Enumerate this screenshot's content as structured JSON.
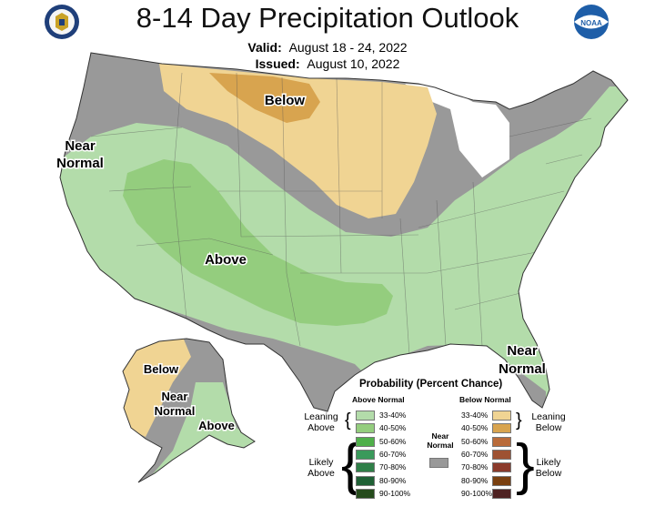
{
  "title": "8-14 Day Precipitation Outlook",
  "valid": {
    "label": "Valid:",
    "value": "August 18 - 24, 2022"
  },
  "issued": {
    "label": "Issued:",
    "value": "August 10, 2022"
  },
  "logos": {
    "left": "doc-seal-icon",
    "right": "noaa-logo-icon"
  },
  "map_labels": {
    "below_north": "Below",
    "near_normal_west_1": "Near",
    "near_normal_west_2": "Normal",
    "above_sw": "Above",
    "near_normal_se_1": "Near",
    "near_normal_se_2": "Normal",
    "ak_below": "Below",
    "ak_near_1": "Near",
    "ak_near_2": "Normal",
    "ak_above": "Above"
  },
  "colors": {
    "near_normal": "#999999",
    "above_33_40": "#b3dcaa",
    "above_40_50": "#94cd7e",
    "below_33_40": "#f0d493",
    "below_40_50": "#d8a44f"
  },
  "legend": {
    "title": "Probability (Percent Chance)",
    "above_header": "Above Normal",
    "below_header": "Below Normal",
    "leaning_above": "Leaning Above",
    "likely_above": "Likely Above",
    "leaning_below": "Leaning Below",
    "likely_below": "Likely Below",
    "near_normal": "Near Normal",
    "above_items": [
      {
        "label": "33-40%",
        "color": "#b3dcaa"
      },
      {
        "label": "40-50%",
        "color": "#94cd7e"
      },
      {
        "label": "50-60%",
        "color": "#4faf4a"
      },
      {
        "label": "60-70%",
        "color": "#3a9a5b"
      },
      {
        "label": "70-80%",
        "color": "#2f7f48"
      },
      {
        "label": "80-90%",
        "color": "#1f6035"
      },
      {
        "label": "90-100%",
        "color": "#254b1c"
      }
    ],
    "below_items": [
      {
        "label": "33-40%",
        "color": "#f0d493"
      },
      {
        "label": "40-50%",
        "color": "#d8a44f"
      },
      {
        "label": "50-60%",
        "color": "#b96b3a"
      },
      {
        "label": "60-70%",
        "color": "#9e5233"
      },
      {
        "label": "70-80%",
        "color": "#8b3a2b"
      },
      {
        "label": "80-90%",
        "color": "#7a4010"
      },
      {
        "label": "90-100%",
        "color": "#4e2121"
      }
    ]
  }
}
